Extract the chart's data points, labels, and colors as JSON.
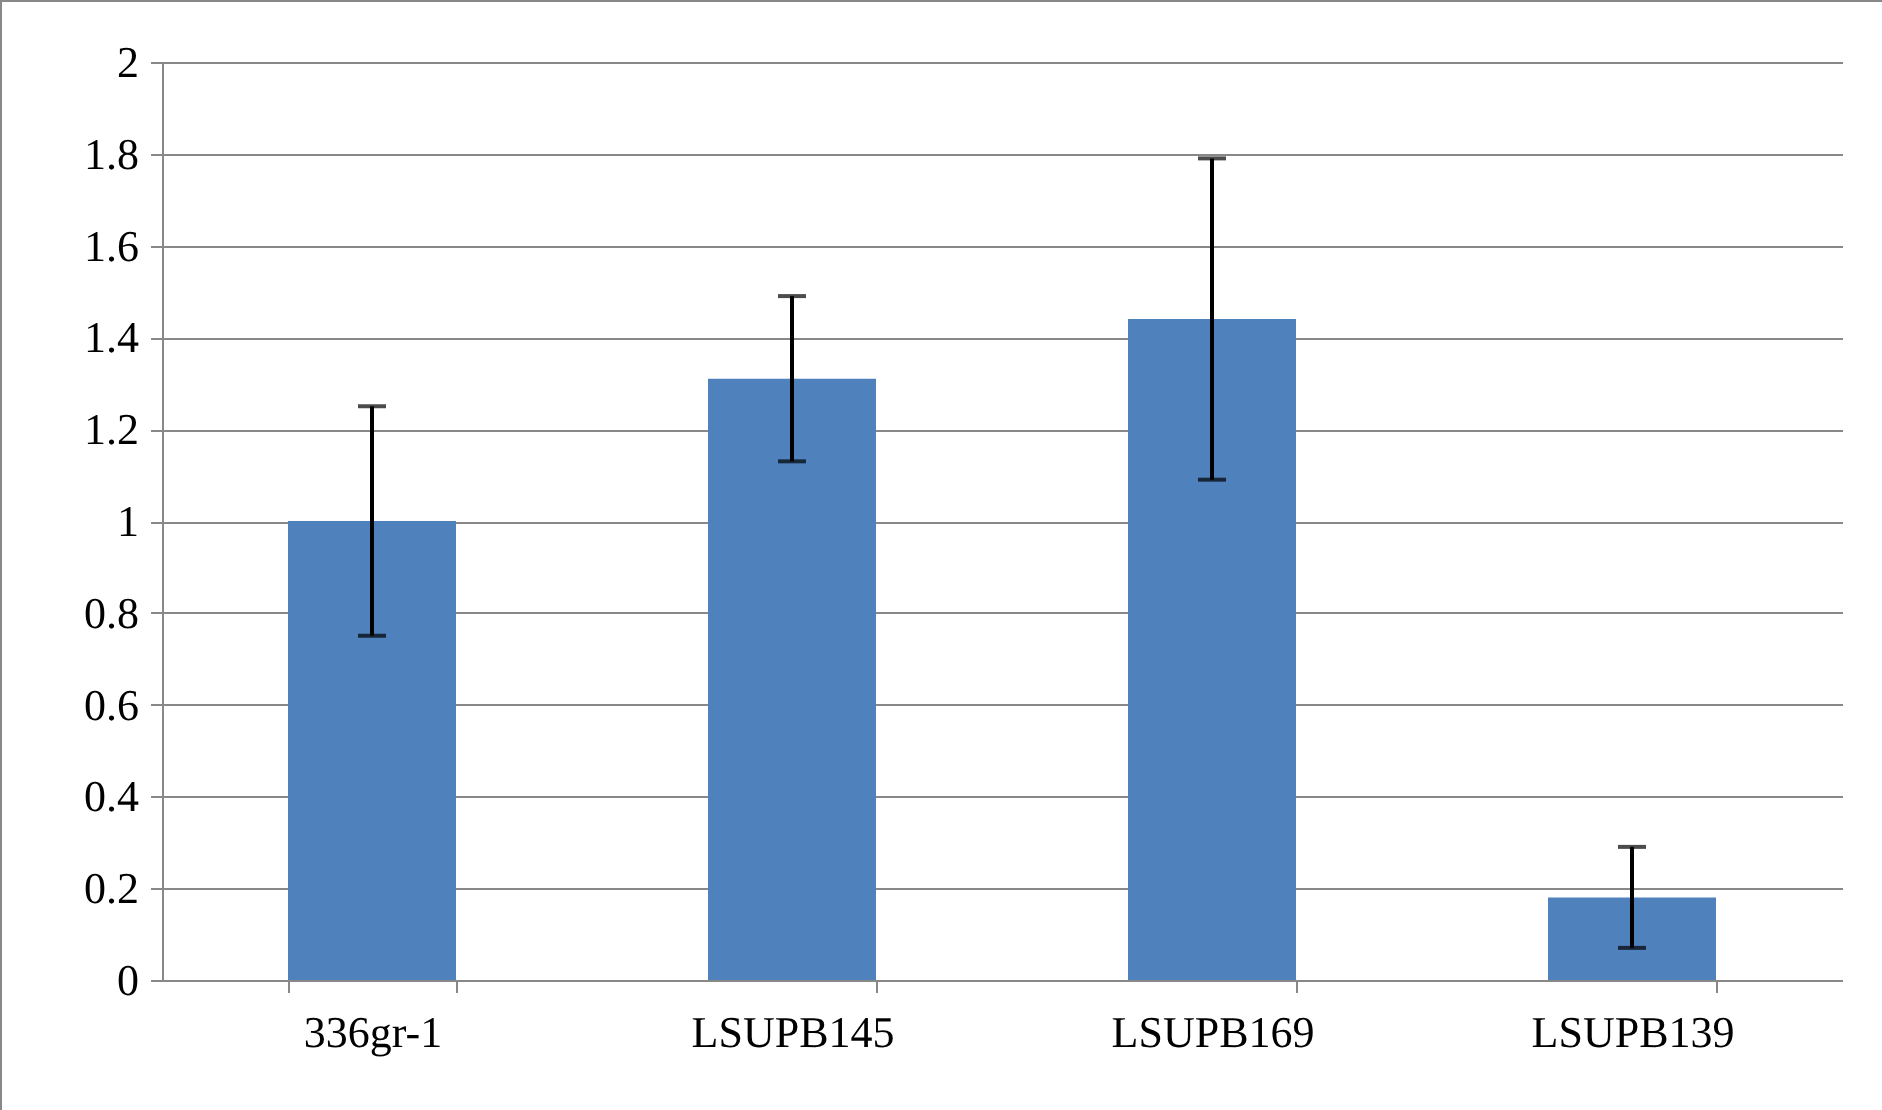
{
  "chart_data": {
    "type": "bar",
    "categories": [
      "336gr-1",
      "LSUPB145",
      "LSUPB169",
      "LSUPB139"
    ],
    "values": [
      1.0,
      1.31,
      1.44,
      0.18
    ],
    "errors": [
      0.25,
      0.18,
      0.35,
      0.11
    ],
    "color": "#4f81bd",
    "ylim": [
      0,
      2
    ],
    "yticks": [
      0,
      0.2,
      0.4,
      0.6,
      0.8,
      1,
      1.2,
      1.4,
      1.6,
      1.8,
      2
    ],
    "grid": "y"
  }
}
